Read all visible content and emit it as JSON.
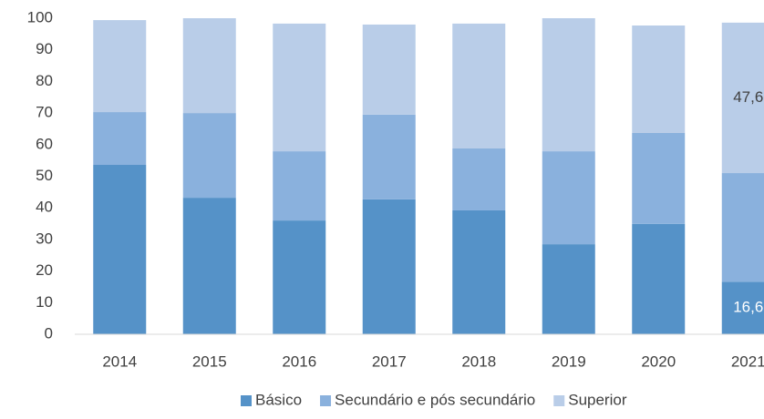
{
  "chart_data": {
    "type": "stacked_bar",
    "categories": [
      "2014",
      "2015",
      "2016",
      "2017",
      "2018",
      "2019",
      "2020",
      "2021"
    ],
    "series": [
      {
        "name": "Básico",
        "color": "#5592c8",
        "values": [
          53.6,
          43.2,
          36.0,
          42.7,
          39.2,
          28.5,
          34.9,
          16.6
        ],
        "value_labels": [
          null,
          null,
          null,
          null,
          null,
          null,
          null,
          "16,6"
        ],
        "label_color": "#ffffff"
      },
      {
        "name": "Secundário e pós secundário",
        "color": "#8ab1dd",
        "values": [
          16.7,
          26.8,
          21.9,
          26.8,
          19.6,
          29.4,
          28.8,
          34.4
        ]
      },
      {
        "name": "Superior",
        "color": "#b9cde8",
        "values": [
          29.1,
          30.0,
          40.4,
          28.5,
          39.5,
          42.1,
          34.0,
          47.6
        ],
        "value_labels": [
          null,
          null,
          null,
          null,
          null,
          null,
          null,
          "47,6"
        ],
        "label_color": "#404040"
      }
    ],
    "ylim": [
      0,
      100
    ],
    "yticks": [
      0,
      10,
      20,
      30,
      40,
      50,
      60,
      70,
      80,
      90,
      100
    ],
    "grid": false,
    "legend": "bottom"
  }
}
